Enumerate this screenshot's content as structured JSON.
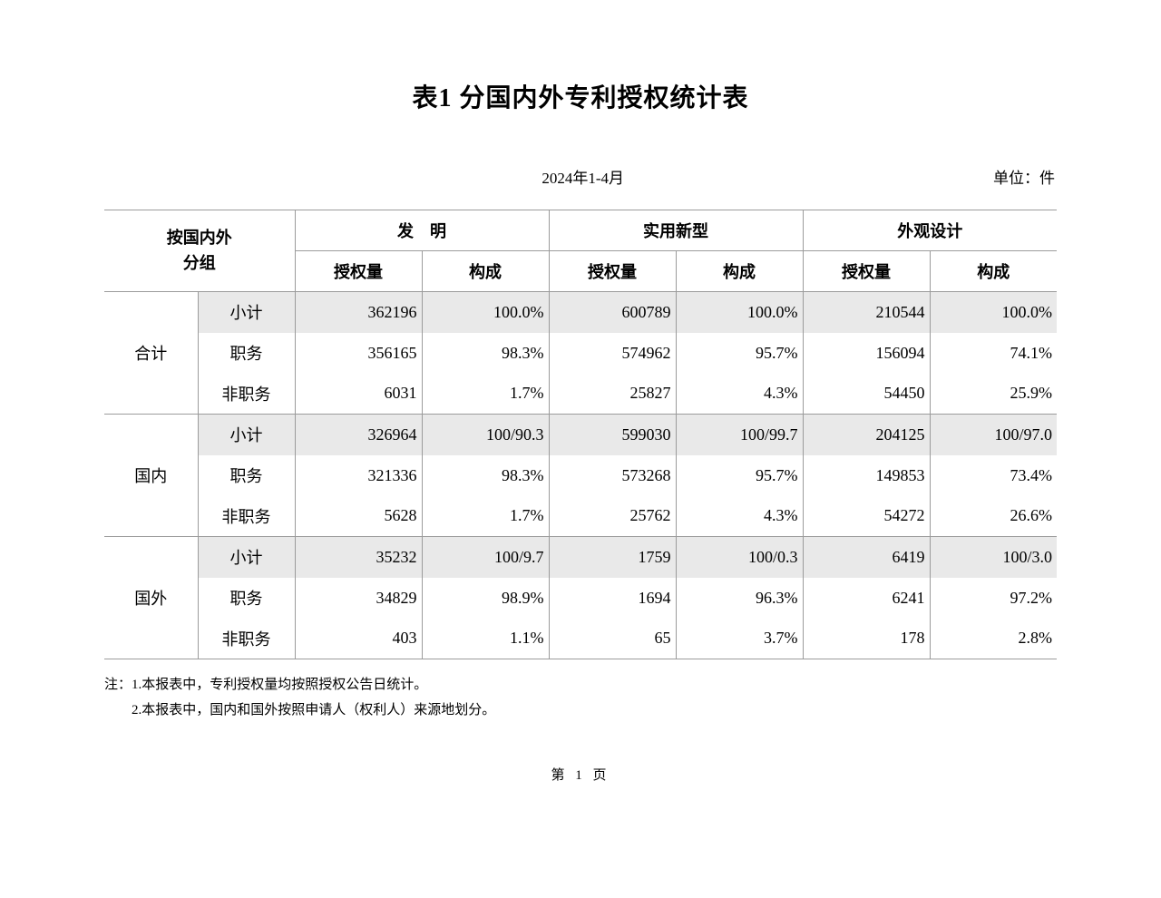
{
  "page": {
    "title": "表1 分国内外专利授权统计表",
    "period": "2024年1-4月",
    "unit": "单位：件",
    "page_number": "第 1 页"
  },
  "colors": {
    "row_highlight": "#e9e9e9",
    "table_border": "#9b9b9b"
  },
  "table": {
    "group_header": {
      "line1": "按国内外",
      "line2": "分组"
    },
    "col_groups": [
      {
        "label": "发　明"
      },
      {
        "label": "实用新型"
      },
      {
        "label": "外观设计"
      }
    ],
    "sub_headers": [
      "授权量",
      "构成"
    ],
    "groups": [
      {
        "name": "合计",
        "rows": [
          {
            "label": "小计",
            "highlight": true,
            "cells": [
              "362196",
              "100.0%",
              "600789",
              "100.0%",
              "210544",
              "100.0%"
            ]
          },
          {
            "label": "职务",
            "highlight": false,
            "cells": [
              "356165",
              "98.3%",
              "574962",
              "95.7%",
              "156094",
              "74.1%"
            ]
          },
          {
            "label": "非职务",
            "highlight": false,
            "cells": [
              "6031",
              "1.7%",
              "25827",
              "4.3%",
              "54450",
              "25.9%"
            ]
          }
        ]
      },
      {
        "name": "国内",
        "rows": [
          {
            "label": "小计",
            "highlight": true,
            "cells": [
              "326964",
              "100/90.3",
              "599030",
              "100/99.7",
              "204125",
              "100/97.0"
            ]
          },
          {
            "label": "职务",
            "highlight": false,
            "cells": [
              "321336",
              "98.3%",
              "573268",
              "95.7%",
              "149853",
              "73.4%"
            ]
          },
          {
            "label": "非职务",
            "highlight": false,
            "cells": [
              "5628",
              "1.7%",
              "25762",
              "4.3%",
              "54272",
              "26.6%"
            ]
          }
        ]
      },
      {
        "name": "国外",
        "rows": [
          {
            "label": "小计",
            "highlight": true,
            "cells": [
              "35232",
              "100/9.7",
              "1759",
              "100/0.3",
              "6419",
              "100/3.0"
            ]
          },
          {
            "label": "职务",
            "highlight": false,
            "cells": [
              "34829",
              "98.9%",
              "1694",
              "96.3%",
              "6241",
              "97.2%"
            ]
          },
          {
            "label": "非职务",
            "highlight": false,
            "cells": [
              "403",
              "1.1%",
              "65",
              "3.7%",
              "178",
              "2.8%"
            ]
          }
        ]
      }
    ]
  },
  "notes": {
    "prefix": "注：",
    "items": [
      "1.本报表中，专利授权量均按照授权公告日统计。",
      "2.本报表中，国内和国外按照申请人（权利人）来源地划分。"
    ]
  }
}
